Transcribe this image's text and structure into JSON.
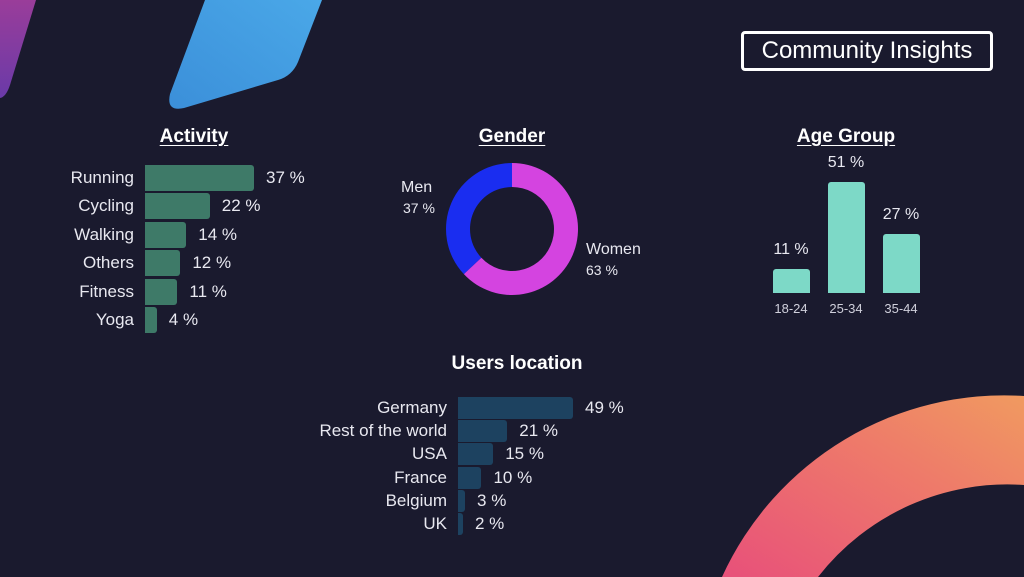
{
  "header": {
    "title": "Community Insights"
  },
  "colors": {
    "background": "#1a1a2e",
    "activity_bar": "#3e7a68",
    "location_bar": "#1d4260",
    "age_bar": "#7dd9c7",
    "men": "#1a2df0",
    "women": "#d444e0"
  },
  "chart_data": [
    {
      "type": "bar",
      "orientation": "horizontal",
      "title": "Activity",
      "categories": [
        "Running",
        "Cycling",
        "Walking",
        "Others",
        "Fitness",
        "Yoga"
      ],
      "values": [
        37,
        22,
        14,
        12,
        11,
        4
      ],
      "value_labels": [
        "37 %",
        "22 %",
        "14 %",
        "12 %",
        "11 %",
        "4 %"
      ],
      "xlim": [
        0,
        37
      ]
    },
    {
      "type": "pie",
      "title": "Gender",
      "categories": [
        "Men",
        "Women"
      ],
      "values": [
        37,
        63
      ],
      "value_labels": [
        "37 %",
        "63 %"
      ]
    },
    {
      "type": "bar",
      "orientation": "vertical",
      "title": "Age Group",
      "categories": [
        "18-24",
        "25-34",
        "35-44"
      ],
      "values": [
        11,
        51,
        27
      ],
      "value_labels": [
        "11 %",
        "51 %",
        "27 %"
      ],
      "ylim": [
        0,
        51
      ]
    },
    {
      "type": "bar",
      "orientation": "horizontal",
      "title": "Users location",
      "categories": [
        "Germany",
        "Rest of the world",
        "USA",
        "France",
        "Belgium",
        "UK"
      ],
      "values": [
        49,
        21,
        15,
        10,
        3,
        2
      ],
      "value_labels": [
        "49 %",
        "21 %",
        "15 %",
        "10 %",
        "3 %",
        "2 %"
      ],
      "xlim": [
        0,
        49
      ]
    }
  ]
}
